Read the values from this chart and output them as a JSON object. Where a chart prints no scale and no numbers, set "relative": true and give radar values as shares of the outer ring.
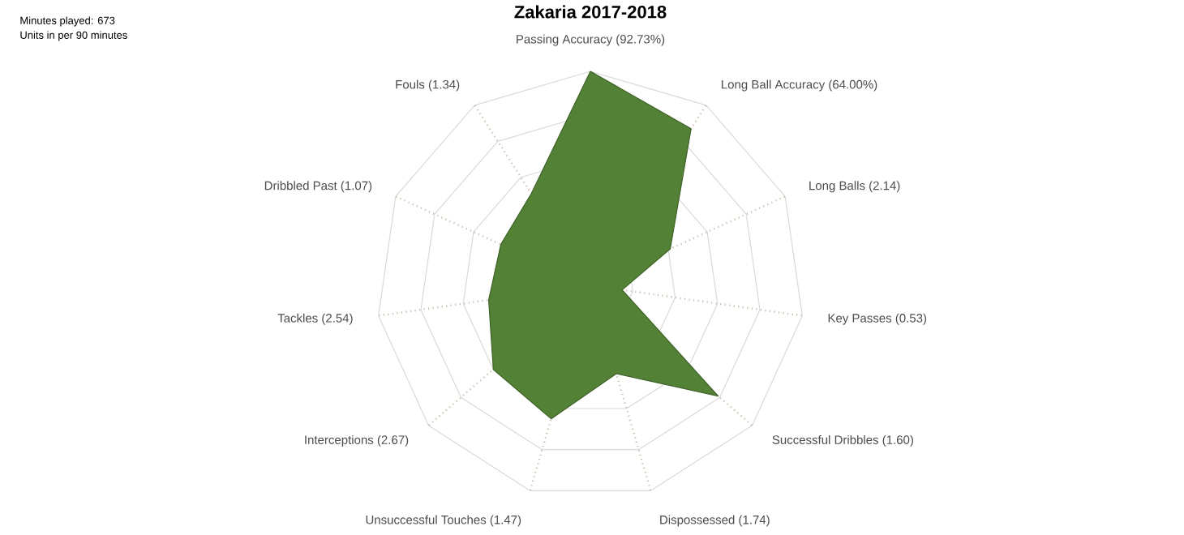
{
  "chart_data": {
    "type": "radar",
    "title": "Zakaria 2017-2018",
    "relative": true,
    "grid": true,
    "marker": "none",
    "categories": [
      "Passing Accuracy (92.73%)",
      "Long Ball Accuracy (64.00%)",
      "Long Balls (2.14)",
      "Key Passes (0.53)",
      "Successful Dribbles (1.60)",
      "Dispossessed (1.74)",
      "Unsuccessful Touches (1.47)",
      "Interceptions (2.67)",
      "Tackles (2.54)",
      "Dribbled Past (1.07)",
      "Fouls (1.34)"
    ],
    "series": [
      {
        "color": "#538135",
        "values": [
          1.0,
          0.87,
          0.41,
          0.15,
          0.79,
          0.43,
          0.65,
          0.6,
          0.48,
          0.46,
          0.51
        ]
      }
    ],
    "annotations": [
      "Minutes played: 673",
      "Units in per 90 minutes"
    ]
  }
}
